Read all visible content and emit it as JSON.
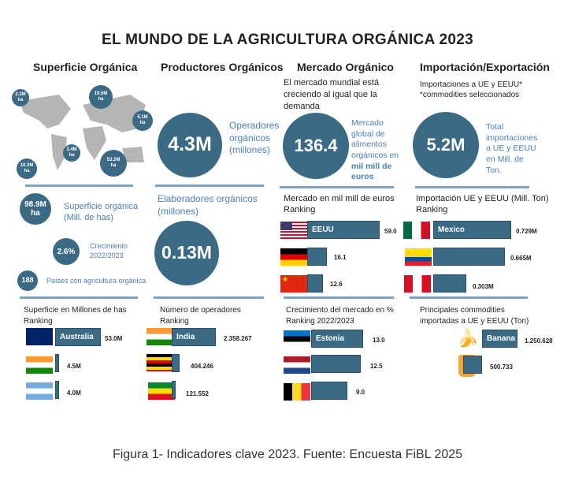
{
  "title": "EL MUNDO DE LA AGRICULTURA ORGÁNICA 2023",
  "headers": [
    "Superficie Orgánica",
    "Productores Orgánicos",
    "Mercado Orgánico",
    "Importación/Exportación"
  ],
  "map_labels": [
    {
      "v": "2.2M",
      "u": "ha"
    },
    {
      "v": "19.5M",
      "u": "ha"
    },
    {
      "v": "5.1M",
      "u": "ha"
    },
    {
      "v": "3.4M",
      "u": "ha"
    },
    {
      "v": "10.3M",
      "u": "ha"
    },
    {
      "v": "53.2M",
      "u": "ha"
    }
  ],
  "superficie": {
    "total_value": "98.9M",
    "total_unit": "ha",
    "total_label": "Superficie orgánica (Mill. de has)",
    "growth_value": "2.6%",
    "growth_label": "Crecimiento 2022/2023",
    "countries_value": "188",
    "countries_label": "Países con agricultura orgánica",
    "ranking_title": "Superficie en Millones de has",
    "ranking_sub": "Ranking",
    "ranking": [
      {
        "country": "Australia",
        "value": "53.0M",
        "n": 53.0
      },
      {
        "country": "",
        "value": "4.5M",
        "n": 4.5
      },
      {
        "country": "",
        "value": "4.0M",
        "n": 4.0
      }
    ]
  },
  "productores": {
    "operators_value": "4.3M",
    "operators_label": "Operadores orgánicos (millones)",
    "processors_label": "Elaboradores orgánicos (millones)",
    "processors_value": "0.13M",
    "ranking_title": "Número de operadores",
    "ranking_sub": "Ranking",
    "ranking": [
      {
        "country": "India",
        "value": "2.358.267",
        "n": 2358267
      },
      {
        "country": "",
        "value": "404.246",
        "n": 404246
      },
      {
        "country": "",
        "value": "121.552",
        "n": 121552
      }
    ]
  },
  "mercado": {
    "intro": "El mercado mundial está creciendo al igual que la demanda",
    "value": "136.4",
    "label": "Mercado global de alimentos orgánicos en",
    "label_bold": "mil mill de euros",
    "ranking_title": "Mercado en mil mill de euros",
    "ranking_sub": "Ranking",
    "ranking": [
      {
        "country": "EEUU",
        "value": "59.0",
        "n": 59.0
      },
      {
        "country": "",
        "value": "16.1",
        "n": 16.1
      },
      {
        "country": "",
        "value": "12.6",
        "n": 12.6
      }
    ],
    "growth_title": "Crecimiento del mercado en %",
    "growth_sub": "Ranking 2022/2023",
    "growth": [
      {
        "country": "Estonia",
        "value": "13.0",
        "n": 13.0
      },
      {
        "country": "",
        "value": "12.5",
        "n": 12.5
      },
      {
        "country": "",
        "value": "9.0",
        "n": 9.0
      }
    ]
  },
  "importacion": {
    "intro1": "Importaciones a UE y EEUU*",
    "intro2": "*commodities seleccionados",
    "value": "5.2M",
    "label": "Total importaciones a UE y EEUU en Mill. de Ton.",
    "ranking_title": "Importación UE y EEUU (Mill. Ton)",
    "ranking_sub": "Ranking",
    "ranking": [
      {
        "country": "Mexico",
        "value": "0.729M",
        "n": 0.729
      },
      {
        "country": "",
        "value": "0.665M",
        "n": 0.665
      },
      {
        "country": "",
        "value": "0.303M",
        "n": 0.303
      }
    ],
    "commodities_title": "Principales commodities importadas a UE y EEUU (Ton)",
    "commodities": [
      {
        "name": "Banana",
        "value": "1.250.628",
        "n": 1250628
      },
      {
        "name": "",
        "value": "500.733",
        "n": 500733
      }
    ]
  },
  "caption": "Figura 1- Indicadores clave 2023. Fuente: Encuesta FiBL 2025"
}
